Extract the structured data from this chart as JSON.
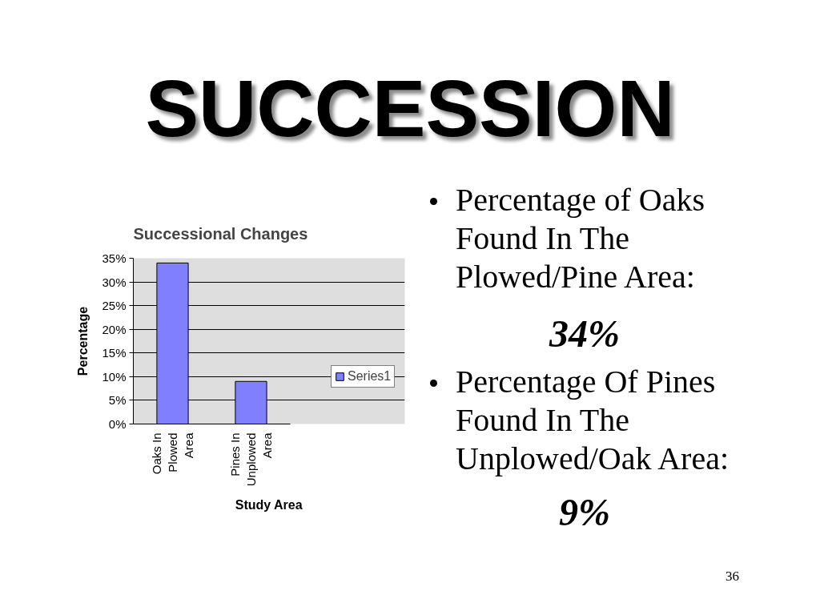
{
  "chart_data": {
    "type": "bar",
    "title": "SUCCESSION",
    "subtitle": "Successional Changes",
    "xlabel": "Study Area",
    "ylabel": "Percentage",
    "categories": [
      "Oaks In Plowed Area",
      "Pines In Unplowed Area"
    ],
    "series": [
      {
        "name": "Series1",
        "color": "#8080ff",
        "values": [
          34,
          9
        ]
      }
    ],
    "ylim": [
      0,
      35
    ],
    "yticks": [
      {
        "value": 0,
        "label": "0%"
      },
      {
        "value": 5,
        "label": "5%"
      },
      {
        "value": 10,
        "label": "10%"
      },
      {
        "value": 15,
        "label": "15%"
      },
      {
        "value": 20,
        "label": "20%"
      },
      {
        "value": 25,
        "label": "25%"
      },
      {
        "value": 30,
        "label": "30%"
      },
      {
        "value": 35,
        "label": "35%"
      }
    ],
    "grid": "y",
    "legend": "right",
    "annotations": [
      "Percentage of Oaks Found In The Plowed/Pine Area:",
      "34%",
      "Percentage Of Pines Found In The Unplowed/Oak Area:",
      "9%",
      "36"
    ]
  }
}
